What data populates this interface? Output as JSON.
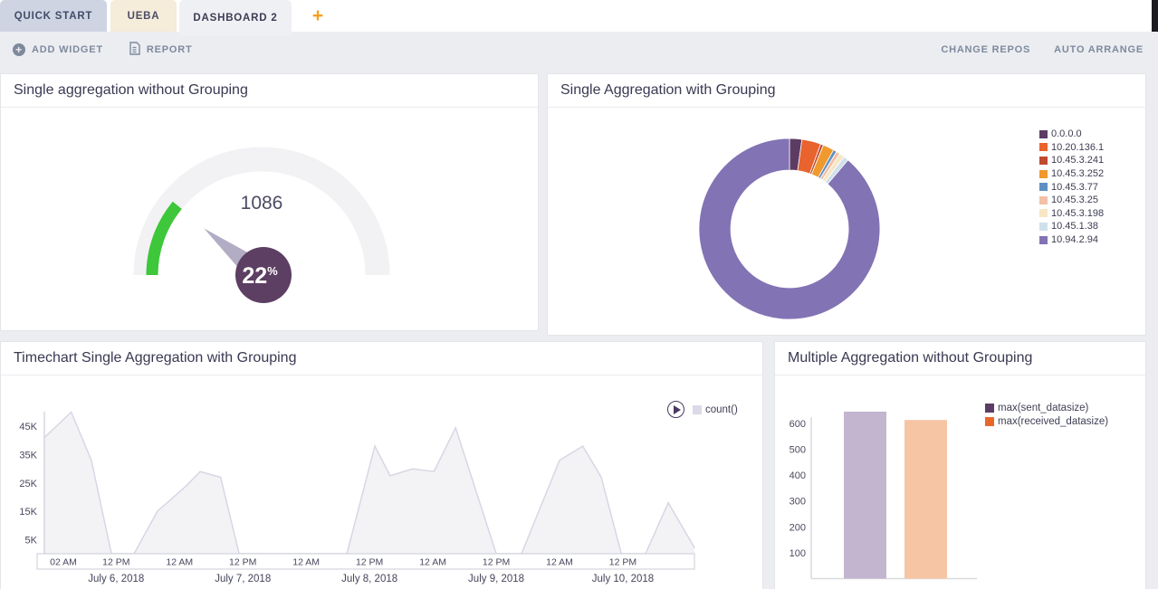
{
  "header": {
    "tabs": [
      {
        "label": "QUICK START"
      },
      {
        "label": "UEBA"
      },
      {
        "label": "DASHBOARD 2"
      }
    ],
    "add_tab_icon": "+",
    "toolbar": {
      "add_widget": "ADD WIDGET",
      "report": "REPORT",
      "change_repos": "CHANGE REPOS",
      "auto_arrange": "AUTO ARRANGE",
      "add_icon": "+"
    }
  },
  "chart_data": [
    {
      "type": "gauge",
      "title": "Single aggregation without Grouping",
      "value": "1086",
      "percent": 22,
      "percent_label": "22",
      "percent_suffix": "%",
      "colors": {
        "track": "#f2f2f4",
        "progress": "#3ec73a",
        "badge": "#5d3f63",
        "needle": "#b2adc4",
        "value_text": "#4b4b63"
      }
    },
    {
      "type": "pie",
      "donut": true,
      "title": "Single Aggregation with Grouping",
      "legend_position": "right",
      "labels": [
        "0.0.0.0",
        "10.20.136.1",
        "10.45.3.241",
        "10.45.3.252",
        "10.45.3.77",
        "10.45.3.25",
        "10.45.3.198",
        "10.45.1.38",
        "10.94.2.94"
      ],
      "values": [
        2.2,
        3.4,
        0.5,
        2.0,
        0.6,
        0.7,
        0.9,
        0.9,
        88.8
      ],
      "colors": [
        "#5d3c63",
        "#e8632d",
        "#bf4a2f",
        "#f0992d",
        "#5f8fc2",
        "#f2c1a6",
        "#f7e6c4",
        "#cfe0ec",
        "#8273b4"
      ]
    },
    {
      "type": "area",
      "title": "Timechart Single Aggregation with Grouping",
      "xlim_hours": [
        -1.6,
        121.6
      ],
      "ylim": [
        0,
        55000
      ],
      "grid": false,
      "series": [
        {
          "name": "count()",
          "fill": "#f3f3f6",
          "line": "#d9d6e4",
          "points": [
            [
              -1.6,
              41000
            ],
            [
              3.5,
              50000
            ],
            [
              7.3,
              33000
            ],
            [
              11.1,
              0
            ],
            [
              15.4,
              0
            ],
            [
              19.8,
              15000
            ],
            [
              25.3,
              24000
            ],
            [
              27.9,
              29000
            ],
            [
              31.8,
              27000
            ],
            [
              35.3,
              0
            ],
            [
              55.7,
              0
            ],
            [
              61,
              38000
            ],
            [
              63.9,
              27500
            ],
            [
              68.2,
              30000
            ],
            [
              72.2,
              29000
            ],
            [
              76.3,
              44500
            ],
            [
              84,
              0
            ],
            [
              88.8,
              0
            ],
            [
              96,
              33000
            ],
            [
              100.4,
              38000
            ],
            [
              103.9,
              27000
            ],
            [
              107.7,
              0
            ],
            [
              112.3,
              0
            ],
            [
              116.6,
              18000
            ],
            [
              121.6,
              2000
            ]
          ]
        }
      ],
      "x_ticks": [
        {
          "h": 2,
          "label": "02 AM"
        },
        {
          "h": 12,
          "label": "12 PM"
        },
        {
          "h": 24,
          "label": "12 AM"
        },
        {
          "h": 36,
          "label": "12 PM"
        },
        {
          "h": 48,
          "label": "12 AM"
        },
        {
          "h": 60,
          "label": "12 PM"
        },
        {
          "h": 72,
          "label": "12 AM"
        },
        {
          "h": 84,
          "label": "12 PM"
        },
        {
          "h": 96,
          "label": "12 AM"
        },
        {
          "h": 108,
          "label": "12 PM"
        }
      ],
      "date_labels": [
        {
          "h": 12,
          "label": "July 6, 2018"
        },
        {
          "h": 36,
          "label": "July 7, 2018"
        },
        {
          "h": 60,
          "label": "July 8, 2018"
        },
        {
          "h": 84,
          "label": "July 9, 2018"
        },
        {
          "h": 108,
          "label": "July 10, 2018"
        }
      ],
      "y_ticks": [
        {
          "v": 5000,
          "label": "5K"
        },
        {
          "v": 15000,
          "label": "15K"
        },
        {
          "v": 25000,
          "label": "25K"
        },
        {
          "v": 35000,
          "label": "35K"
        },
        {
          "v": 45000,
          "label": "45K"
        }
      ]
    },
    {
      "type": "bar",
      "title": "Multiple Aggregation without Grouping",
      "ylim": [
        0,
        675
      ],
      "y_ticks": [
        100,
        200,
        300,
        400,
        500,
        600
      ],
      "series": [
        {
          "name": "max(sent_datasize)",
          "value": 645,
          "bar_color": "#c3b4cf",
          "legend_color": "#5d3c63"
        },
        {
          "name": "max(received_datasize)",
          "value": 613,
          "bar_color": "#f6c5a3",
          "legend_color": "#e8682c"
        }
      ]
    }
  ]
}
